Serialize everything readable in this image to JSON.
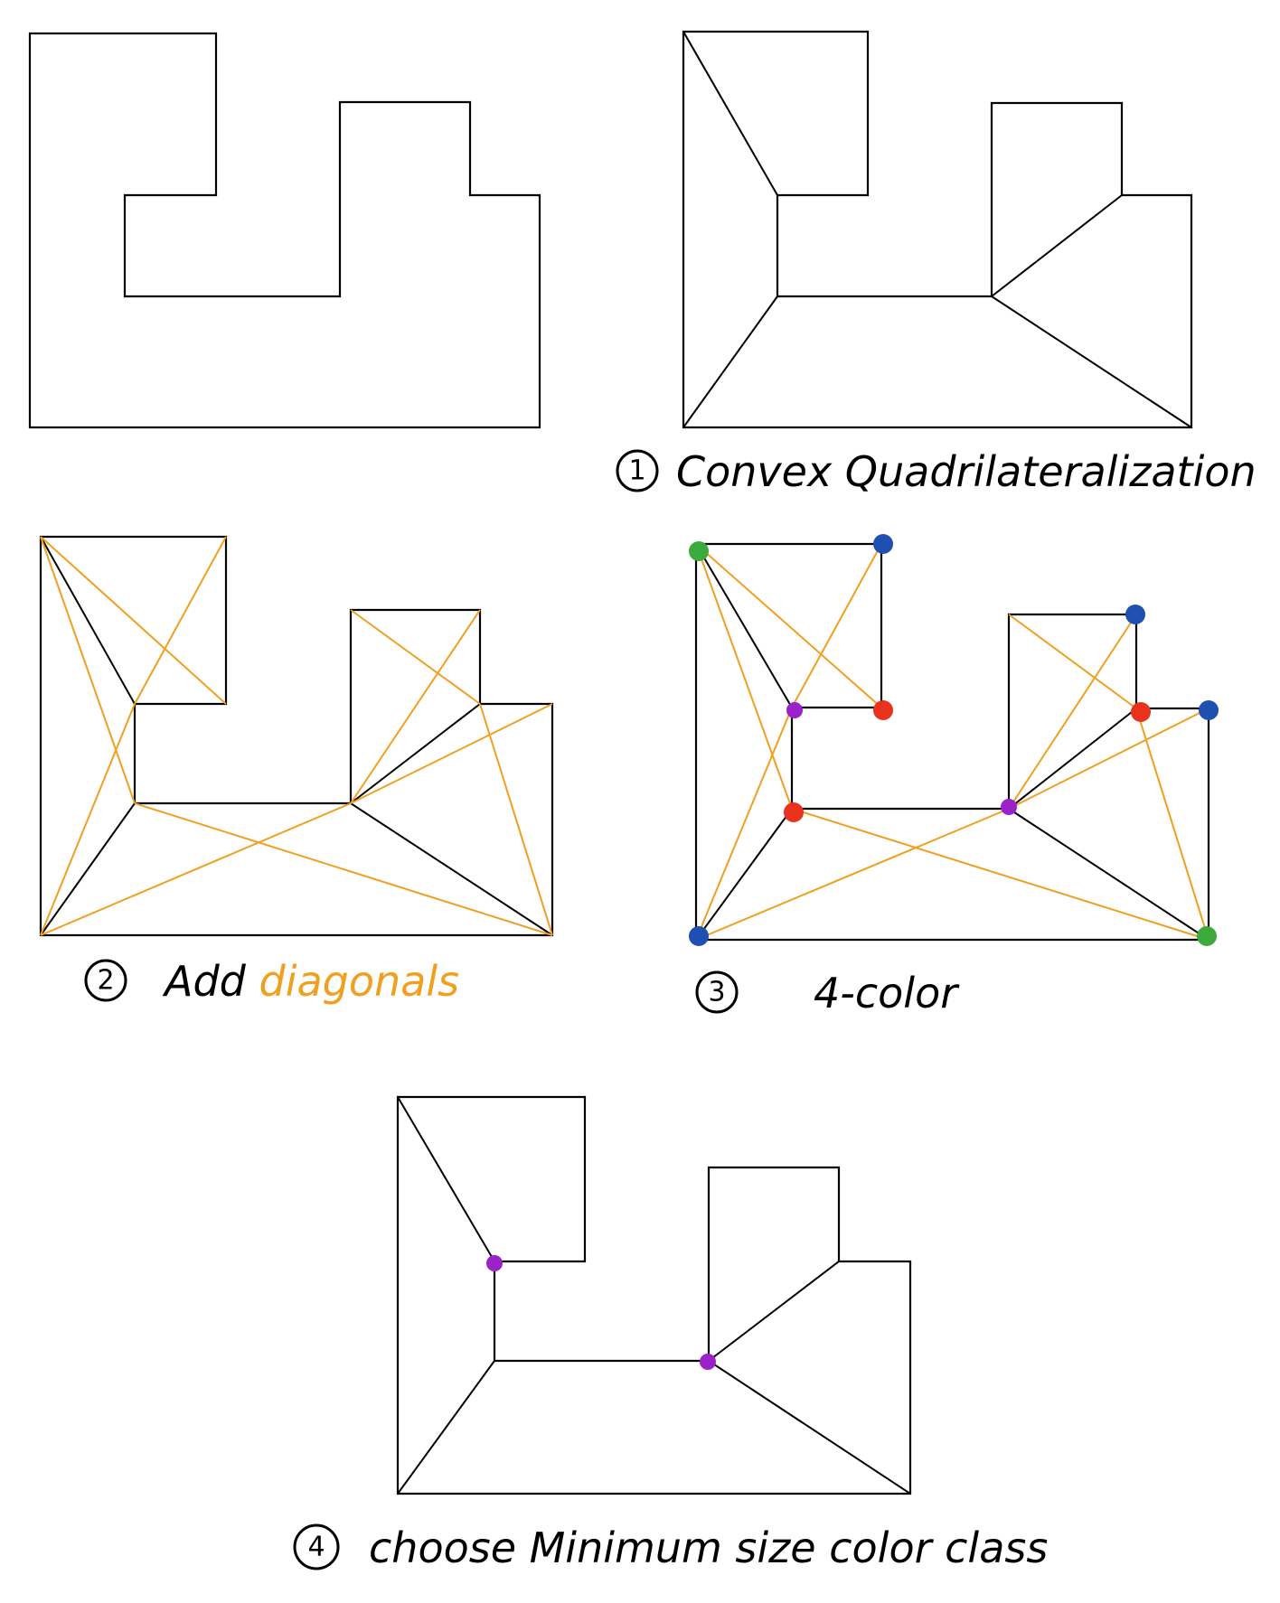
{
  "panels": [
    {
      "step": "",
      "caption": ""
    },
    {
      "step": "1",
      "caption": "Convex Quadrilateralization"
    },
    {
      "step": "2",
      "caption": "Add",
      "caption_accent": "diagonals"
    },
    {
      "step": "3",
      "caption": "4-color"
    },
    {
      "step": "4",
      "caption": "choose Minimum size color class"
    }
  ],
  "colors": {
    "outline": "#000000",
    "diagonal": "#f0a020",
    "green": "#3daa3d",
    "blue": "#1f4fb0",
    "red": "#e8321e",
    "purple": "#9a22c8"
  },
  "vertex_colors": [
    "green",
    "blue",
    "purple",
    "red",
    "red",
    "purple",
    "blue",
    "red",
    "blue",
    "blue",
    "green"
  ],
  "solution_vertices": [
    "purple",
    "purple"
  ]
}
